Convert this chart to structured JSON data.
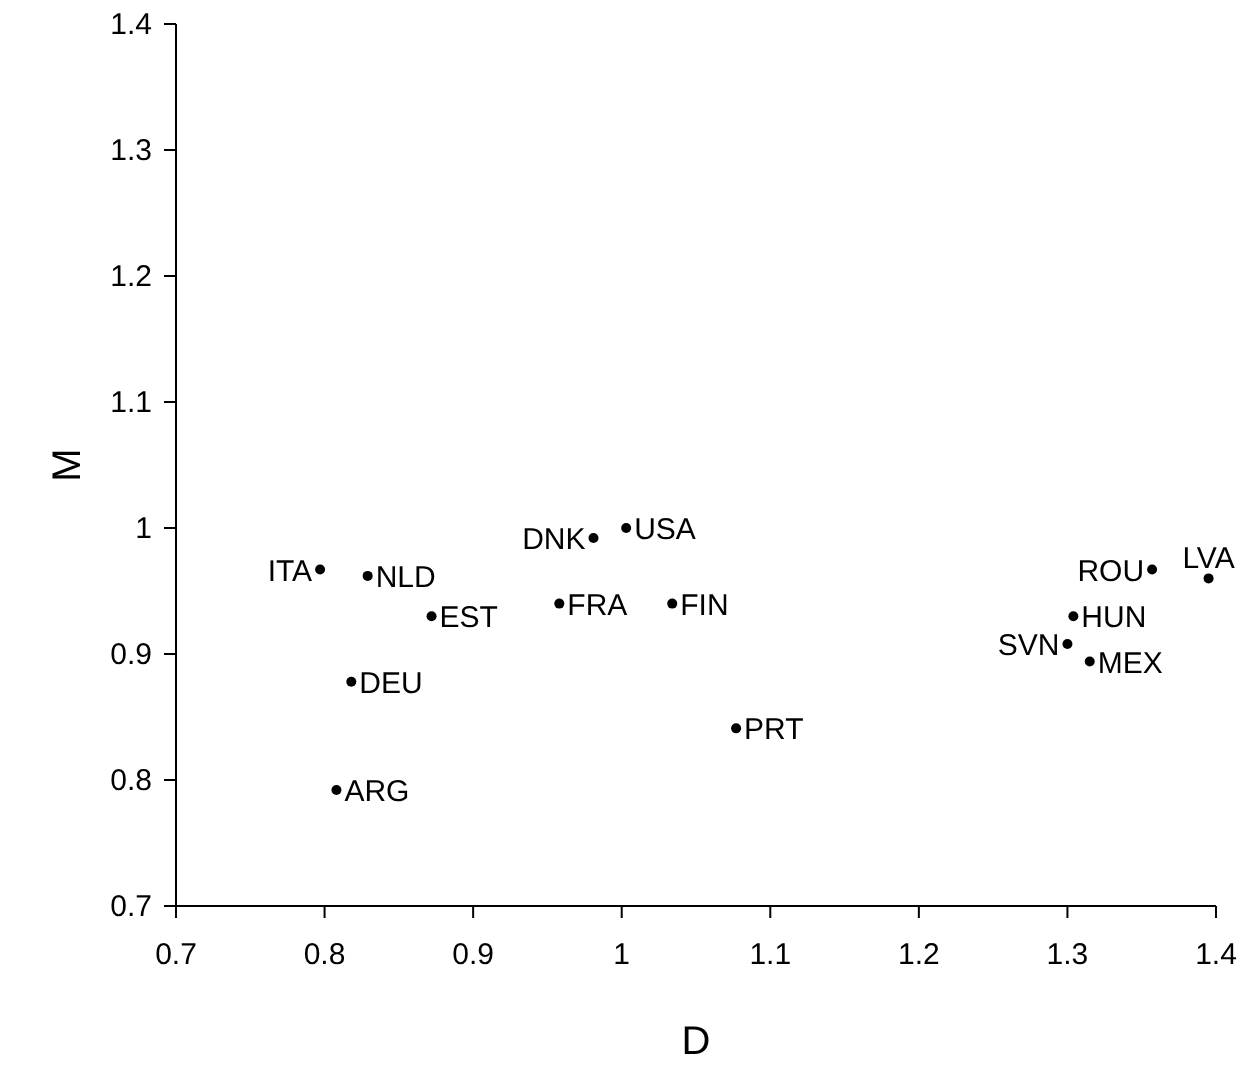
{
  "chart_data": {
    "type": "scatter",
    "xlabel": "D",
    "ylabel": "M",
    "xlim": [
      0.7,
      1.4
    ],
    "ylim": [
      0.7,
      1.4
    ],
    "xticks": [
      0.7,
      0.8,
      0.9,
      1,
      1.1,
      1.2,
      1.3,
      1.4
    ],
    "yticks": [
      0.7,
      0.8,
      0.9,
      1,
      1.1,
      1.2,
      1.3,
      1.4
    ],
    "grid": false,
    "marker": "circle",
    "x": [
      0.797,
      0.829,
      0.872,
      0.818,
      0.808,
      0.981,
      1.003,
      0.958,
      1.034,
      1.077,
      1.304,
      1.3,
      1.315,
      1.357,
      1.395
    ],
    "values": [
      0.967,
      0.962,
      0.93,
      0.878,
      0.792,
      0.992,
      1.0,
      0.94,
      0.94,
      0.841,
      0.93,
      0.908,
      0.894,
      0.967,
      0.96
    ],
    "annotations": [
      {
        "text": "ITA",
        "x": 0.797,
        "y": 0.967
      },
      {
        "text": "NLD",
        "x": 0.829,
        "y": 0.962
      },
      {
        "text": "EST",
        "x": 0.872,
        "y": 0.93
      },
      {
        "text": "DEU",
        "x": 0.818,
        "y": 0.878
      },
      {
        "text": "ARG",
        "x": 0.808,
        "y": 0.792
      },
      {
        "text": "DNK",
        "x": 0.981,
        "y": 0.992
      },
      {
        "text": "USA",
        "x": 1.003,
        "y": 1.0
      },
      {
        "text": "FRA",
        "x": 0.958,
        "y": 0.94
      },
      {
        "text": "FIN",
        "x": 1.034,
        "y": 0.94
      },
      {
        "text": "PRT",
        "x": 1.077,
        "y": 0.841
      },
      {
        "text": "HUN",
        "x": 1.304,
        "y": 0.93
      },
      {
        "text": "SVN",
        "x": 1.3,
        "y": 0.908
      },
      {
        "text": "MEX",
        "x": 1.315,
        "y": 0.894
      },
      {
        "text": "ROU",
        "x": 1.357,
        "y": 0.967
      },
      {
        "text": "LVA",
        "x": 1.395,
        "y": 0.96
      }
    ]
  }
}
